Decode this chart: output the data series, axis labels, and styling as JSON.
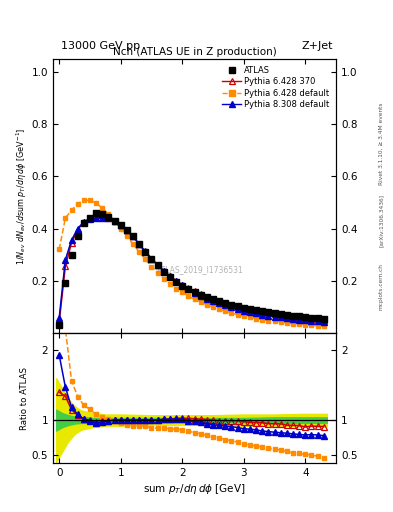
{
  "title_top": "13000 GeV pp",
  "title_right": "Z+Jet",
  "plot_title": "Nch (ATLAS UE in Z production)",
  "watermark": "ATLAS_2019_I1736531",
  "rivet_text": "Rivet 3.1.10, ≥ 3.4M events",
  "arxiv_text": "[arXiv:1306.3436]",
  "mcplots_text": "mcplots.cern.ch",
  "atlas_x": [
    0.0,
    0.1,
    0.2,
    0.3,
    0.4,
    0.5,
    0.6,
    0.7,
    0.8,
    0.9,
    1.0,
    1.1,
    1.2,
    1.3,
    1.4,
    1.5,
    1.6,
    1.7,
    1.8,
    1.9,
    2.0,
    2.1,
    2.2,
    2.3,
    2.4,
    2.5,
    2.6,
    2.7,
    2.8,
    2.9,
    3.0,
    3.1,
    3.2,
    3.3,
    3.4,
    3.5,
    3.6,
    3.7,
    3.8,
    3.9,
    4.0,
    4.1,
    4.2,
    4.3
  ],
  "atlas_y": [
    0.03,
    0.19,
    0.3,
    0.37,
    0.42,
    0.44,
    0.46,
    0.455,
    0.445,
    0.43,
    0.415,
    0.395,
    0.37,
    0.34,
    0.31,
    0.285,
    0.26,
    0.235,
    0.215,
    0.195,
    0.18,
    0.168,
    0.157,
    0.147,
    0.138,
    0.13,
    0.122,
    0.115,
    0.108,
    0.102,
    0.097,
    0.092,
    0.087,
    0.083,
    0.079,
    0.075,
    0.072,
    0.069,
    0.066,
    0.063,
    0.061,
    0.058,
    0.056,
    0.054
  ],
  "atlas_yerr": [
    0.003,
    0.005,
    0.005,
    0.005,
    0.005,
    0.005,
    0.005,
    0.005,
    0.005,
    0.005,
    0.005,
    0.005,
    0.005,
    0.005,
    0.004,
    0.004,
    0.004,
    0.004,
    0.004,
    0.003,
    0.003,
    0.003,
    0.003,
    0.003,
    0.003,
    0.003,
    0.003,
    0.003,
    0.003,
    0.003,
    0.003,
    0.002,
    0.002,
    0.002,
    0.002,
    0.002,
    0.002,
    0.002,
    0.002,
    0.002,
    0.002,
    0.002,
    0.002,
    0.002
  ],
  "p6_370_x": [
    0.0,
    0.1,
    0.2,
    0.3,
    0.4,
    0.5,
    0.6,
    0.7,
    0.8,
    0.9,
    1.0,
    1.1,
    1.2,
    1.3,
    1.4,
    1.5,
    1.6,
    1.7,
    1.8,
    1.9,
    2.0,
    2.1,
    2.2,
    2.3,
    2.4,
    2.5,
    2.6,
    2.7,
    2.8,
    2.9,
    3.0,
    3.1,
    3.2,
    3.3,
    3.4,
    3.5,
    3.6,
    3.7,
    3.8,
    3.9,
    4.0,
    4.1,
    4.2,
    4.3
  ],
  "p6_370_y": [
    0.042,
    0.255,
    0.345,
    0.395,
    0.425,
    0.44,
    0.45,
    0.45,
    0.44,
    0.43,
    0.415,
    0.395,
    0.37,
    0.34,
    0.31,
    0.285,
    0.26,
    0.238,
    0.218,
    0.2,
    0.185,
    0.172,
    0.16,
    0.149,
    0.139,
    0.13,
    0.121,
    0.114,
    0.107,
    0.101,
    0.095,
    0.089,
    0.084,
    0.08,
    0.075,
    0.071,
    0.068,
    0.064,
    0.061,
    0.058,
    0.055,
    0.053,
    0.051,
    0.049
  ],
  "p6_def_x": [
    0.0,
    0.1,
    0.2,
    0.3,
    0.4,
    0.5,
    0.6,
    0.7,
    0.8,
    0.9,
    1.0,
    1.1,
    1.2,
    1.3,
    1.4,
    1.5,
    1.6,
    1.7,
    1.8,
    1.9,
    2.0,
    2.1,
    2.2,
    2.3,
    2.4,
    2.5,
    2.6,
    2.7,
    2.8,
    2.9,
    3.0,
    3.1,
    3.2,
    3.3,
    3.4,
    3.5,
    3.6,
    3.7,
    3.8,
    3.9,
    4.0,
    4.1,
    4.2,
    4.3
  ],
  "p6_def_y": [
    0.32,
    0.44,
    0.47,
    0.495,
    0.508,
    0.508,
    0.498,
    0.478,
    0.455,
    0.43,
    0.4,
    0.37,
    0.34,
    0.31,
    0.282,
    0.254,
    0.23,
    0.208,
    0.188,
    0.17,
    0.155,
    0.141,
    0.129,
    0.118,
    0.108,
    0.099,
    0.091,
    0.083,
    0.076,
    0.07,
    0.064,
    0.059,
    0.055,
    0.051,
    0.047,
    0.044,
    0.041,
    0.038,
    0.035,
    0.033,
    0.031,
    0.029,
    0.027,
    0.025
  ],
  "p8_def_x": [
    0.0,
    0.1,
    0.2,
    0.3,
    0.4,
    0.5,
    0.6,
    0.7,
    0.8,
    0.9,
    1.0,
    1.1,
    1.2,
    1.3,
    1.4,
    1.5,
    1.6,
    1.7,
    1.8,
    1.9,
    2.0,
    2.1,
    2.2,
    2.3,
    2.4,
    2.5,
    2.6,
    2.7,
    2.8,
    2.9,
    3.0,
    3.1,
    3.2,
    3.3,
    3.4,
    3.5,
    3.6,
    3.7,
    3.8,
    3.9,
    4.0,
    4.1,
    4.2,
    4.3
  ],
  "p8_def_y": [
    0.058,
    0.28,
    0.355,
    0.4,
    0.425,
    0.435,
    0.44,
    0.44,
    0.44,
    0.43,
    0.415,
    0.395,
    0.37,
    0.34,
    0.312,
    0.285,
    0.26,
    0.238,
    0.217,
    0.198,
    0.182,
    0.167,
    0.154,
    0.142,
    0.131,
    0.121,
    0.113,
    0.105,
    0.098,
    0.091,
    0.085,
    0.08,
    0.075,
    0.07,
    0.066,
    0.062,
    0.059,
    0.056,
    0.053,
    0.05,
    0.048,
    0.046,
    0.044,
    0.042
  ],
  "band_x": [
    -0.05,
    0.05,
    0.15,
    0.25,
    0.35,
    0.45,
    0.55,
    0.75,
    1.0,
    1.5,
    2.0,
    2.5,
    3.0,
    3.5,
    4.0,
    4.35
  ],
  "green_band_lo": [
    0.85,
    0.9,
    0.93,
    0.95,
    0.96,
    0.96,
    0.97,
    0.97,
    0.97,
    0.97,
    0.97,
    0.97,
    0.97,
    0.96,
    0.96,
    0.96
  ],
  "green_band_hi": [
    1.15,
    1.1,
    1.07,
    1.05,
    1.04,
    1.04,
    1.03,
    1.03,
    1.03,
    1.03,
    1.03,
    1.03,
    1.03,
    1.04,
    1.04,
    1.04
  ],
  "yellow_band_lo": [
    0.4,
    0.55,
    0.7,
    0.8,
    0.86,
    0.88,
    0.9,
    0.92,
    0.92,
    0.93,
    0.93,
    0.93,
    0.92,
    0.92,
    0.91,
    0.91
  ],
  "yellow_band_hi": [
    1.6,
    1.45,
    1.3,
    1.2,
    1.14,
    1.12,
    1.1,
    1.08,
    1.08,
    1.07,
    1.07,
    1.07,
    1.08,
    1.08,
    1.09,
    1.09
  ],
  "color_atlas": "#000000",
  "color_p6_370": "#cc0000",
  "color_p6_def": "#ff8c00",
  "color_p8_def": "#0000cc",
  "main_ylim": [
    0.0,
    1.05
  ],
  "main_yticks": [
    0.2,
    0.4,
    0.6,
    0.8,
    1.0
  ],
  "ratio_ylim": [
    0.38,
    2.25
  ],
  "ratio_yticks": [
    0.5,
    1.0,
    2.0
  ],
  "xlim": [
    -0.1,
    4.5
  ]
}
